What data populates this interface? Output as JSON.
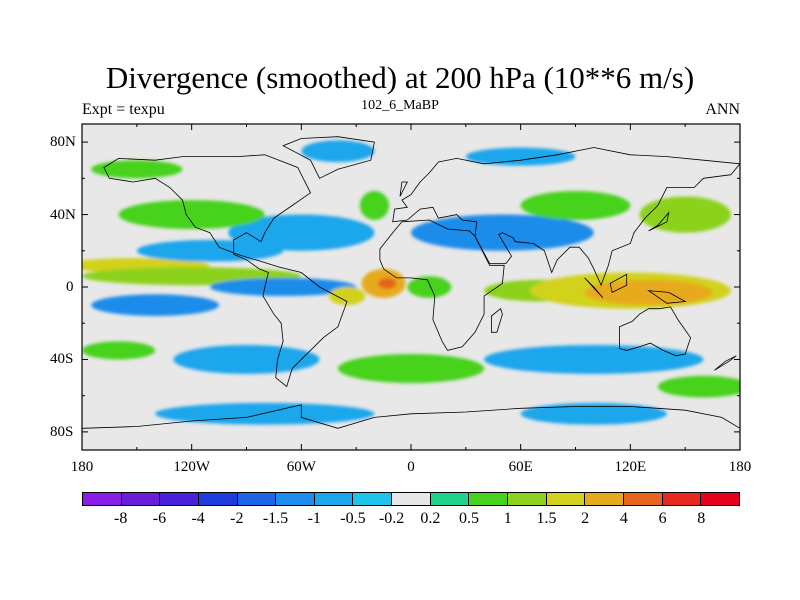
{
  "chart_data": {
    "type": "heatmap",
    "title": "Divergence (smoothed) at 200 hPa (10**6 m/s)",
    "subtitle_left": "Expt = texpu",
    "subtitle_center": "102_6_MaBP",
    "subtitle_right": "ANN",
    "x_ticks": [
      {
        "value": -180,
        "label": "180"
      },
      {
        "value": -120,
        "label": "120W"
      },
      {
        "value": -60,
        "label": "60W"
      },
      {
        "value": 0,
        "label": "0"
      },
      {
        "value": 60,
        "label": "60E"
      },
      {
        "value": 120,
        "label": "120E"
      },
      {
        "value": 180,
        "label": "180"
      }
    ],
    "y_ticks": [
      {
        "value": 80,
        "label": "80N"
      },
      {
        "value": 40,
        "label": "40N"
      },
      {
        "value": 0,
        "label": "0"
      },
      {
        "value": -40,
        "label": "40S"
      },
      {
        "value": -80,
        "label": "80S"
      }
    ],
    "xlim": [
      -180,
      180
    ],
    "ylim": [
      -90,
      90
    ],
    "colorbar": {
      "levels": [
        "-8",
        "-6",
        "-4",
        "-2",
        "-1.5",
        "-1",
        "-0.5",
        "-0.2",
        "0.2",
        "0.5",
        "1",
        "1.5",
        "2",
        "4",
        "6",
        "8"
      ],
      "colors": [
        "#8a1ee6",
        "#6a1ed6",
        "#4a20d8",
        "#1e3cdc",
        "#1e64e6",
        "#1e8cea",
        "#1ea6ec",
        "#1ec4ec",
        "#e8e8e8",
        "#1ed28c",
        "#46d21e",
        "#8cd21e",
        "#d2d21e",
        "#e6aa1e",
        "#e6641e",
        "#e6281e",
        "#e6001e"
      ]
    },
    "background_color": "#e8e8e8",
    "field_blobs": [
      {
        "lon": -150,
        "lat": 12,
        "rlon": 40,
        "rlat": 4,
        "level": 2
      },
      {
        "lon": -120,
        "lat": 6,
        "rlon": 60,
        "rlat": 5,
        "level": 1.5
      },
      {
        "lon": -140,
        "lat": -10,
        "rlon": 35,
        "rlat": 6,
        "level": -1
      },
      {
        "lon": -70,
        "lat": 0,
        "rlon": 40,
        "rlat": 5,
        "level": -1
      },
      {
        "lon": -15,
        "lat": 2,
        "rlon": 12,
        "rlat": 8,
        "level": 4
      },
      {
        "lon": -13,
        "lat": 2,
        "rlon": 5,
        "rlat": 3,
        "level": 6
      },
      {
        "lon": -35,
        "lat": -5,
        "rlon": 10,
        "rlat": 5,
        "level": 2
      },
      {
        "lon": 10,
        "lat": 0,
        "rlon": 12,
        "rlat": 6,
        "level": 1
      },
      {
        "lon": 70,
        "lat": -2,
        "rlon": 30,
        "rlat": 6,
        "level": 1.5
      },
      {
        "lon": 120,
        "lat": -2,
        "rlon": 55,
        "rlat": 10,
        "level": 2
      },
      {
        "lon": 130,
        "lat": -3,
        "rlon": 35,
        "rlat": 7,
        "level": 4
      },
      {
        "lon": 50,
        "lat": 30,
        "rlon": 50,
        "rlat": 10,
        "level": -1
      },
      {
        "lon": -60,
        "lat": 30,
        "rlon": 40,
        "rlat": 10,
        "level": -0.5
      },
      {
        "lon": -120,
        "lat": 40,
        "rlon": 40,
        "rlat": 8,
        "level": 1
      },
      {
        "lon": 150,
        "lat": 40,
        "rlon": 25,
        "rlat": 10,
        "level": 1.5
      },
      {
        "lon": -20,
        "lat": 45,
        "rlon": 8,
        "rlat": 8,
        "level": 1
      },
      {
        "lon": 90,
        "lat": 45,
        "rlon": 30,
        "rlat": 8,
        "level": 1
      },
      {
        "lon": -150,
        "lat": 65,
        "rlon": 25,
        "rlat": 5,
        "level": 1
      },
      {
        "lon": -160,
        "lat": -35,
        "rlon": 20,
        "rlat": 5,
        "level": 1
      },
      {
        "lon": -90,
        "lat": -40,
        "rlon": 40,
        "rlat": 8,
        "level": -0.5
      },
      {
        "lon": 0,
        "lat": -45,
        "rlon": 40,
        "rlat": 8,
        "level": 1
      },
      {
        "lon": 100,
        "lat": -40,
        "rlon": 60,
        "rlat": 8,
        "level": -0.5
      },
      {
        "lon": 160,
        "lat": -55,
        "rlon": 25,
        "rlat": 6,
        "level": 1
      },
      {
        "lon": -80,
        "lat": -70,
        "rlon": 60,
        "rlat": 6,
        "level": -0.5
      },
      {
        "lon": 100,
        "lat": -70,
        "rlon": 40,
        "rlat": 6,
        "level": -0.5
      },
      {
        "lon": -40,
        "lat": 75,
        "rlon": 20,
        "rlat": 6,
        "level": -0.5
      },
      {
        "lon": 60,
        "lat": 72,
        "rlon": 30,
        "rlat": 5,
        "level": -0.5
      },
      {
        "lon": -110,
        "lat": 20,
        "rlon": 40,
        "rlat": 6,
        "level": -0.5
      }
    ],
    "continent_outlines": [
      [
        [
          -168,
          66
        ],
        [
          -160,
          71
        ],
        [
          -140,
          70
        ],
        [
          -125,
          72
        ],
        [
          -95,
          72
        ],
        [
          -80,
          73
        ],
        [
          -62,
          66
        ],
        [
          -55,
          52
        ],
        [
          -65,
          45
        ],
        [
          -75,
          38
        ],
        [
          -80,
          30
        ],
        [
          -82,
          25
        ],
        [
          -90,
          30
        ],
        [
          -97,
          26
        ],
        [
          -97,
          18
        ],
        [
          -90,
          15
        ],
        [
          -83,
          10
        ],
        [
          -78,
          8
        ],
        [
          -80,
          0
        ],
        [
          -81,
          -5
        ],
        [
          -75,
          -15
        ],
        [
          -71,
          -20
        ],
        [
          -70,
          -30
        ],
        [
          -73,
          -40
        ],
        [
          -74,
          -50
        ],
        [
          -68,
          -55
        ],
        [
          -65,
          -45
        ],
        [
          -58,
          -38
        ],
        [
          -48,
          -28
        ],
        [
          -40,
          -22
        ],
        [
          -35,
          -8
        ],
        [
          -50,
          0
        ],
        [
          -60,
          8
        ],
        [
          -72,
          11
        ],
        [
          -85,
          15
        ],
        [
          -95,
          18
        ],
        [
          -105,
          22
        ],
        [
          -110,
          30
        ],
        [
          -118,
          33
        ],
        [
          -123,
          40
        ],
        [
          -125,
          48
        ],
        [
          -132,
          55
        ],
        [
          -140,
          60
        ],
        [
          -152,
          58
        ],
        [
          -165,
          60
        ],
        [
          -168,
          66
        ]
      ],
      [
        [
          -17,
          15
        ],
        [
          -17,
          21
        ],
        [
          -10,
          30
        ],
        [
          -5,
          36
        ],
        [
          10,
          37
        ],
        [
          20,
          32
        ],
        [
          32,
          31
        ],
        [
          35,
          28
        ],
        [
          43,
          12
        ],
        [
          51,
          12
        ],
        [
          50,
          2
        ],
        [
          40,
          -5
        ],
        [
          40,
          -15
        ],
        [
          35,
          -25
        ],
        [
          28,
          -33
        ],
        [
          20,
          -35
        ],
        [
          17,
          -30
        ],
        [
          12,
          -18
        ],
        [
          13,
          -5
        ],
        [
          9,
          4
        ],
        [
          0,
          5
        ],
        [
          -8,
          5
        ],
        [
          -15,
          10
        ],
        [
          -17,
          15
        ]
      ],
      [
        [
          -10,
          36
        ],
        [
          -9,
          43
        ],
        [
          -2,
          44
        ],
        [
          -5,
          48
        ],
        [
          0,
          51
        ],
        [
          5,
          58
        ],
        [
          10,
          63
        ],
        [
          15,
          69
        ],
        [
          25,
          71
        ],
        [
          40,
          68
        ],
        [
          60,
          70
        ],
        [
          80,
          73
        ],
        [
          100,
          77
        ],
        [
          120,
          73
        ],
        [
          140,
          72
        ],
        [
          160,
          70
        ],
        [
          180,
          68
        ],
        [
          175,
          62
        ],
        [
          160,
          60
        ],
        [
          155,
          55
        ],
        [
          140,
          55
        ],
        [
          135,
          45
        ],
        [
          128,
          38
        ],
        [
          122,
          30
        ],
        [
          120,
          24
        ],
        [
          110,
          20
        ],
        [
          108,
          12
        ],
        [
          104,
          1
        ],
        [
          100,
          10
        ],
        [
          97,
          16
        ],
        [
          92,
          22
        ],
        [
          87,
          22
        ],
        [
          80,
          15
        ],
        [
          77,
          8
        ],
        [
          73,
          20
        ],
        [
          67,
          24
        ],
        [
          57,
          25
        ],
        [
          56,
          27
        ],
        [
          50,
          30
        ],
        [
          48,
          29
        ],
        [
          55,
          17
        ],
        [
          52,
          13
        ],
        [
          43,
          13
        ],
        [
          35,
          28
        ],
        [
          36,
          36
        ],
        [
          28,
          37
        ],
        [
          25,
          40
        ],
        [
          15,
          38
        ],
        [
          12,
          44
        ],
        [
          5,
          43
        ],
        [
          -2,
          37
        ],
        [
          -10,
          36
        ]
      ],
      [
        [
          114,
          -22
        ],
        [
          114,
          -34
        ],
        [
          118,
          -35
        ],
        [
          125,
          -33
        ],
        [
          131,
          -31
        ],
        [
          138,
          -35
        ],
        [
          145,
          -38
        ],
        [
          150,
          -37
        ],
        [
          153,
          -28
        ],
        [
          146,
          -18
        ],
        [
          142,
          -11
        ],
        [
          136,
          -12
        ],
        [
          130,
          -12
        ],
        [
          125,
          -15
        ],
        [
          121,
          -19
        ],
        [
          114,
          -22
        ]
      ],
      [
        [
          -180,
          -78
        ],
        [
          -150,
          -77
        ],
        [
          -120,
          -74
        ],
        [
          -90,
          -72
        ],
        [
          -60,
          -65
        ],
        [
          -60,
          -72
        ],
        [
          -40,
          -78
        ],
        [
          -20,
          -72
        ],
        [
          0,
          -70
        ],
        [
          30,
          -69
        ],
        [
          60,
          -67
        ],
        [
          90,
          -66
        ],
        [
          120,
          -66
        ],
        [
          150,
          -68
        ],
        [
          170,
          -72
        ],
        [
          180,
          -78
        ],
        [
          180,
          -90
        ],
        [
          -180,
          -90
        ],
        [
          -180,
          -78
        ]
      ],
      [
        [
          -50,
          60
        ],
        [
          -40,
          65
        ],
        [
          -22,
          70
        ],
        [
          -20,
          80
        ],
        [
          -40,
          83
        ],
        [
          -60,
          82
        ],
        [
          -70,
          78
        ],
        [
          -55,
          70
        ],
        [
          -50,
          60
        ]
      ],
      [
        [
          44,
          -25
        ],
        [
          47,
          -25
        ],
        [
          50,
          -15
        ],
        [
          49,
          -12
        ],
        [
          44,
          -16
        ],
        [
          44,
          -25
        ]
      ],
      [
        [
          130,
          -2
        ],
        [
          141,
          -3
        ],
        [
          150,
          -8
        ],
        [
          140,
          -9
        ],
        [
          130,
          -2
        ]
      ],
      [
        [
          95,
          5
        ],
        [
          105,
          -6
        ],
        [
          100,
          0
        ],
        [
          95,
          5
        ]
      ],
      [
        [
          109,
          2
        ],
        [
          118,
          7
        ],
        [
          118,
          1
        ],
        [
          110,
          -3
        ],
        [
          109,
          2
        ]
      ],
      [
        [
          130,
          31
        ],
        [
          135,
          34
        ],
        [
          141,
          41
        ],
        [
          140,
          36
        ],
        [
          130,
          31
        ]
      ],
      [
        [
          -6,
          50
        ],
        [
          -2,
          58
        ],
        [
          -5,
          58
        ],
        [
          -6,
          50
        ]
      ],
      [
        [
          166,
          -46
        ],
        [
          174,
          -41
        ],
        [
          178,
          -38
        ],
        [
          172,
          -41
        ],
        [
          166,
          -46
        ]
      ]
    ]
  }
}
